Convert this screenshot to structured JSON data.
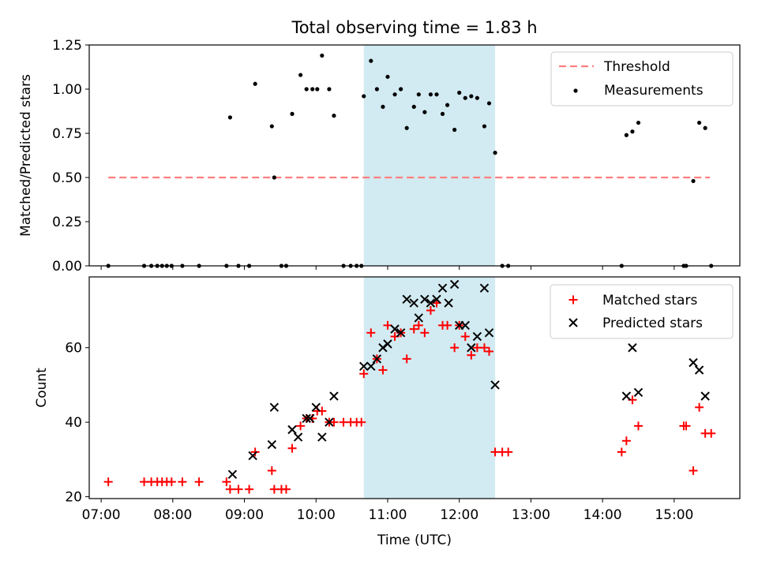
{
  "title": "Total observing time = 1.83 h",
  "chart_data": [
    {
      "type": "scatter",
      "ylabel": "Matched/Predicted stars",
      "xlim": [
        "06:50",
        "15:55"
      ],
      "ylim": [
        0,
        1.25
      ],
      "y_ticks": [
        "0.00",
        "0.25",
        "0.50",
        "0.75",
        "1.00",
        "1.25"
      ],
      "y_tick_values": [
        0,
        0.25,
        0.5,
        0.75,
        1.0,
        1.25
      ],
      "highlight": {
        "start": "10:40",
        "end": "12:30",
        "color": "#add8e6"
      },
      "legend": {
        "position": "top-right"
      },
      "threshold": {
        "name": "Threshold",
        "value": 0.5,
        "x_range": [
          "07:06",
          "15:30"
        ],
        "color": "#ff7f7f"
      },
      "series": [
        {
          "name": "Measurements",
          "color": "#000000",
          "points": [
            [
              "07:06",
              0
            ],
            [
              "07:36",
              0
            ],
            [
              "07:42",
              0
            ],
            [
              "07:47",
              0
            ],
            [
              "07:51",
              0
            ],
            [
              "07:55",
              0
            ],
            [
              "07:59",
              0
            ],
            [
              "08:08",
              0
            ],
            [
              "08:22",
              0
            ],
            [
              "08:45",
              0
            ],
            [
              "08:48",
              0.84
            ],
            [
              "08:55",
              0
            ],
            [
              "09:04",
              0
            ],
            [
              "09:09",
              1.03
            ],
            [
              "09:23",
              0.79
            ],
            [
              "09:25",
              0.5
            ],
            [
              "09:31",
              0
            ],
            [
              "09:35",
              0
            ],
            [
              "09:40",
              0.86
            ],
            [
              "09:47",
              1.08
            ],
            [
              "09:52",
              1.0
            ],
            [
              "09:57",
              1.0
            ],
            [
              "10:01",
              1.0
            ],
            [
              "10:05",
              1.19
            ],
            [
              "10:11",
              1.0
            ],
            [
              "10:15",
              0.85
            ],
            [
              "10:23",
              0
            ],
            [
              "10:29",
              0
            ],
            [
              "10:34",
              0
            ],
            [
              "10:38",
              0
            ],
            [
              "10:40",
              0.96
            ],
            [
              "10:46",
              1.16
            ],
            [
              "10:51",
              1.0
            ],
            [
              "10:56",
              0.9
            ],
            [
              "11:00",
              1.07
            ],
            [
              "11:06",
              0.97
            ],
            [
              "11:11",
              1.0
            ],
            [
              "11:16",
              0.78
            ],
            [
              "11:22",
              0.9
            ],
            [
              "11:26",
              0.97
            ],
            [
              "11:31",
              0.87
            ],
            [
              "11:36",
              0.97
            ],
            [
              "11:41",
              0.97
            ],
            [
              "11:46",
              0.86
            ],
            [
              "11:50",
              0.91
            ],
            [
              "11:56",
              0.77
            ],
            [
              "12:00",
              0.98
            ],
            [
              "12:05",
              0.95
            ],
            [
              "12:10",
              0.96
            ],
            [
              "12:15",
              0.95
            ],
            [
              "12:21",
              0.79
            ],
            [
              "12:25",
              0.92
            ],
            [
              "12:30",
              0.64
            ],
            [
              "12:36",
              0
            ],
            [
              "12:41",
              0
            ],
            [
              "14:16",
              0
            ],
            [
              "14:20",
              0.74
            ],
            [
              "14:25",
              0.76
            ],
            [
              "14:30",
              0.81
            ],
            [
              "15:08",
              0
            ],
            [
              "15:10",
              0
            ],
            [
              "15:16",
              0.48
            ],
            [
              "15:21",
              0.81
            ],
            [
              "15:26",
              0.78
            ],
            [
              "15:31",
              0
            ]
          ]
        }
      ]
    },
    {
      "type": "scatter",
      "ylabel": "Count",
      "xlabel": "Time (UTC)",
      "xlim": [
        "06:50",
        "15:55"
      ],
      "ylim": [
        19.5,
        79
      ],
      "x_ticks": [
        "07:00",
        "08:00",
        "09:00",
        "10:00",
        "11:00",
        "12:00",
        "13:00",
        "14:00",
        "15:00"
      ],
      "y_ticks": [
        "20",
        "40",
        "60"
      ],
      "y_tick_values": [
        20,
        40,
        60
      ],
      "highlight": {
        "start": "10:40",
        "end": "12:30",
        "color": "#add8e6"
      },
      "legend": {
        "position": "top-right"
      },
      "series": [
        {
          "name": "Matched stars",
          "marker": "plus",
          "color": "#ff0000",
          "points": [
            [
              "07:06",
              24
            ],
            [
              "07:36",
              24
            ],
            [
              "07:42",
              24
            ],
            [
              "07:47",
              24
            ],
            [
              "07:51",
              24
            ],
            [
              "07:55",
              24
            ],
            [
              "07:59",
              24
            ],
            [
              "08:08",
              24
            ],
            [
              "08:22",
              24
            ],
            [
              "08:45",
              24
            ],
            [
              "08:48",
              22
            ],
            [
              "08:55",
              22
            ],
            [
              "09:04",
              22
            ],
            [
              "09:09",
              32
            ],
            [
              "09:23",
              27
            ],
            [
              "09:25",
              22
            ],
            [
              "09:31",
              22
            ],
            [
              "09:35",
              22
            ],
            [
              "09:40",
              33
            ],
            [
              "09:47",
              39
            ],
            [
              "09:52",
              41
            ],
            [
              "09:57",
              41
            ],
            [
              "10:01",
              43
            ],
            [
              "10:05",
              43
            ],
            [
              "10:11",
              40
            ],
            [
              "10:15",
              40
            ],
            [
              "10:23",
              40
            ],
            [
              "10:29",
              40
            ],
            [
              "10:34",
              40
            ],
            [
              "10:38",
              40
            ],
            [
              "10:40",
              53
            ],
            [
              "10:46",
              64
            ],
            [
              "10:51",
              57
            ],
            [
              "10:56",
              54
            ],
            [
              "11:00",
              66
            ],
            [
              "11:06",
              63
            ],
            [
              "11:11",
              64
            ],
            [
              "11:16",
              57
            ],
            [
              "11:22",
              65
            ],
            [
              "11:26",
              66
            ],
            [
              "11:31",
              64
            ],
            [
              "11:36",
              70
            ],
            [
              "11:41",
              72
            ],
            [
              "11:46",
              66
            ],
            [
              "11:50",
              66
            ],
            [
              "11:56",
              60
            ],
            [
              "12:00",
              66
            ],
            [
              "12:05",
              63
            ],
            [
              "12:10",
              58
            ],
            [
              "12:15",
              60
            ],
            [
              "12:21",
              60
            ],
            [
              "12:25",
              59
            ],
            [
              "12:30",
              32
            ],
            [
              "12:36",
              32
            ],
            [
              "12:41",
              32
            ],
            [
              "14:16",
              32
            ],
            [
              "14:20",
              35
            ],
            [
              "14:25",
              46
            ],
            [
              "14:30",
              39
            ],
            [
              "15:08",
              39
            ],
            [
              "15:10",
              39
            ],
            [
              "15:16",
              27
            ],
            [
              "15:21",
              44
            ],
            [
              "15:26",
              37
            ],
            [
              "15:31",
              37
            ]
          ]
        },
        {
          "name": "Predicted stars",
          "marker": "x",
          "color": "#000000",
          "points": [
            [
              "08:50",
              26
            ],
            [
              "09:07",
              31
            ],
            [
              "09:23",
              34
            ],
            [
              "09:25",
              44
            ],
            [
              "09:40",
              38
            ],
            [
              "09:45",
              36
            ],
            [
              "09:52",
              41
            ],
            [
              "09:55",
              41
            ],
            [
              "10:00",
              44
            ],
            [
              "10:05",
              36
            ],
            [
              "10:11",
              40
            ],
            [
              "10:15",
              47
            ],
            [
              "10:40",
              55
            ],
            [
              "10:46",
              55
            ],
            [
              "10:51",
              57
            ],
            [
              "10:56",
              60
            ],
            [
              "11:00",
              61
            ],
            [
              "11:06",
              65
            ],
            [
              "11:11",
              64
            ],
            [
              "11:16",
              73
            ],
            [
              "11:22",
              72
            ],
            [
              "11:26",
              68
            ],
            [
              "11:31",
              73
            ],
            [
              "11:36",
              72
            ],
            [
              "11:41",
              73
            ],
            [
              "11:46",
              76
            ],
            [
              "11:51",
              72
            ],
            [
              "11:56",
              77
            ],
            [
              "12:00",
              66
            ],
            [
              "12:05",
              66
            ],
            [
              "12:10",
              60
            ],
            [
              "12:15",
              63
            ],
            [
              "12:21",
              76
            ],
            [
              "12:25",
              64
            ],
            [
              "12:30",
              50
            ],
            [
              "14:20",
              47
            ],
            [
              "14:25",
              60
            ],
            [
              "14:30",
              48
            ],
            [
              "15:16",
              56
            ],
            [
              "15:21",
              54
            ],
            [
              "15:26",
              47
            ]
          ]
        }
      ]
    }
  ]
}
